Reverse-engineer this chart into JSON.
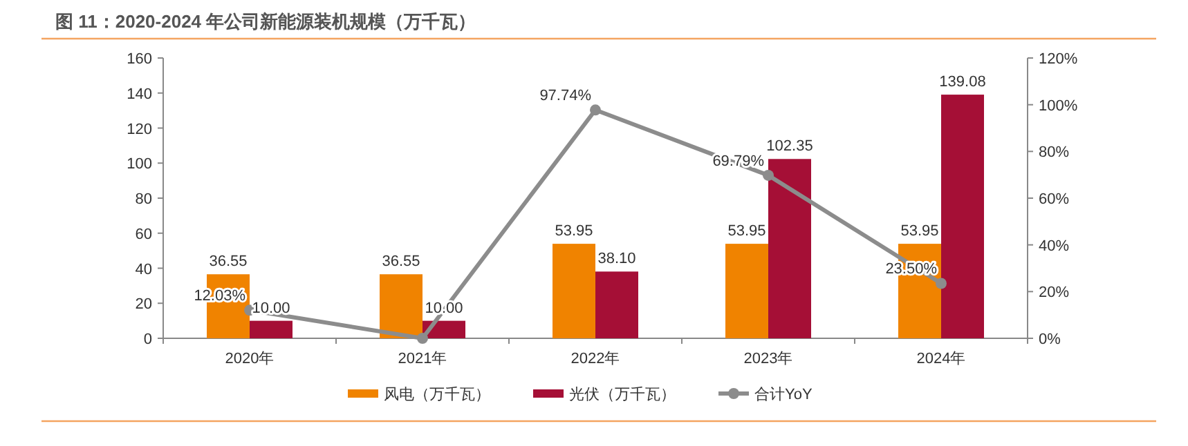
{
  "chart_data": {
    "type": "bar",
    "title": "图 11：2020-2024 年公司新能源装机规模（万千瓦）",
    "categories": [
      "2020年",
      "2021年",
      "2022年",
      "2023年",
      "2024年"
    ],
    "series": [
      {
        "name": "风电（万千瓦）",
        "color": "#f08300",
        "values": [
          36.55,
          36.55,
          53.95,
          53.95,
          53.95
        ],
        "value_labels": [
          "36.55",
          "36.55",
          "53.95",
          "53.95",
          "53.95"
        ]
      },
      {
        "name": "光伏（万千瓦）",
        "color": "#a50f36",
        "values": [
          10.0,
          10.0,
          38.1,
          102.35,
          139.08
        ],
        "value_labels": [
          "10.00",
          "10.00",
          "38.10",
          "102.35",
          "139.08"
        ]
      },
      {
        "name": "合计YoY",
        "type": "line",
        "axis": "y2",
        "color": "#8c8c8c",
        "marker": "circle",
        "values": [
          12.03,
          0,
          97.74,
          69.79,
          23.5
        ],
        "value_labels": [
          "12.03%",
          null,
          "97.74%",
          "69.79%",
          "23.50%"
        ]
      }
    ],
    "ylim": [
      0,
      160
    ],
    "yticks": [
      0,
      20,
      40,
      60,
      80,
      100,
      120,
      140,
      160
    ],
    "y2lim": [
      0,
      120
    ],
    "y2ticks": [
      {
        "value": 0,
        "label": "0%"
      },
      {
        "value": 20,
        "label": "20%"
      },
      {
        "value": 40,
        "label": "40%"
      },
      {
        "value": 60,
        "label": "60%"
      },
      {
        "value": 80,
        "label": "80%"
      },
      {
        "value": 100,
        "label": "100%"
      },
      {
        "value": 120,
        "label": "120%"
      }
    ],
    "legend": "bottom",
    "grid": false
  }
}
